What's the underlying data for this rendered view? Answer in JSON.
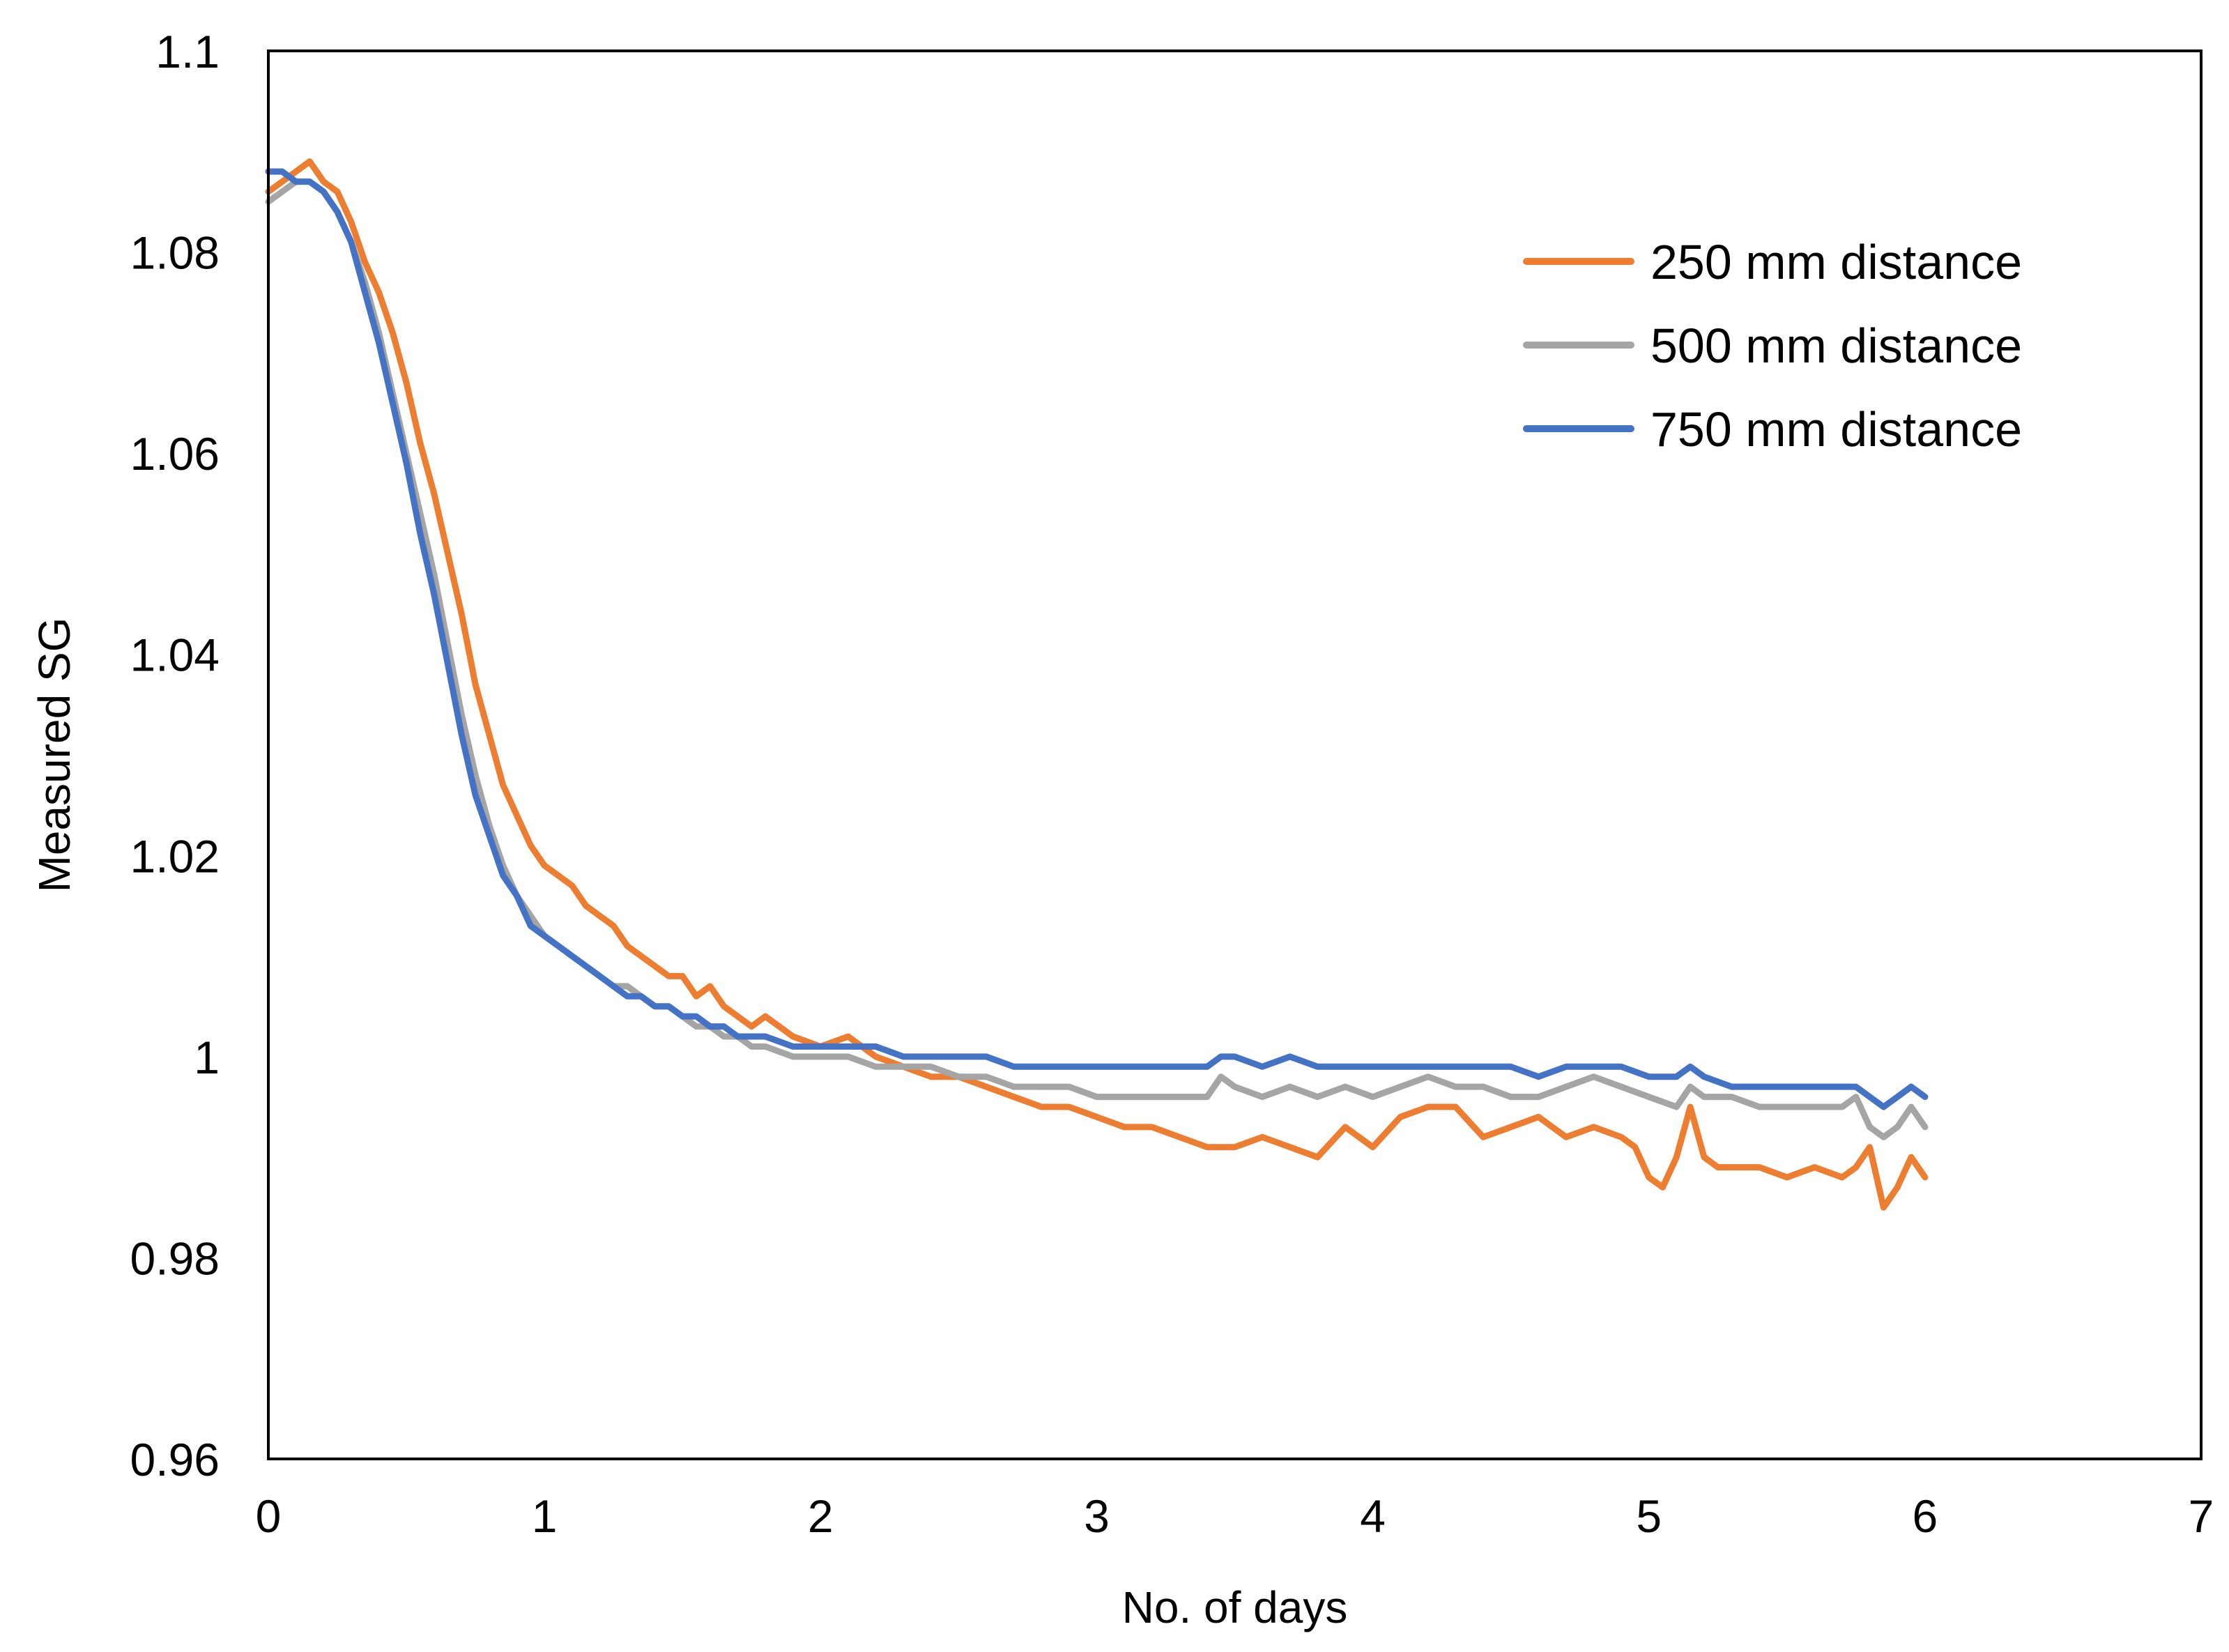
{
  "chart_data": {
    "type": "line",
    "title": "",
    "xlabel": "No. of days",
    "ylabel": "Measured SG",
    "xlim": [
      0,
      7
    ],
    "ylim": [
      0.96,
      1.1
    ],
    "xticks": [
      0,
      1,
      2,
      3,
      4,
      5,
      6,
      7
    ],
    "xtick_labels": [
      "0",
      "1",
      "2",
      "3",
      "4",
      "5",
      "6",
      "7"
    ],
    "yticks": [
      0.96,
      0.98,
      1.0,
      1.02,
      1.04,
      1.06,
      1.08,
      1.1
    ],
    "ytick_labels": [
      "0.96",
      "0.98",
      "1",
      "1.02",
      "1.04",
      "1.06",
      "1.08",
      "1.1"
    ],
    "grid": false,
    "legend_position": "top-right",
    "series": [
      {
        "name": "250 mm distance",
        "label": "250 mm distance",
        "color": "#ED7D31",
        "x": [
          0,
          0.05,
          0.1,
          0.15,
          0.2,
          0.25,
          0.3,
          0.35,
          0.4,
          0.45,
          0.5,
          0.55,
          0.6,
          0.65,
          0.7,
          0.75,
          0.8,
          0.85,
          0.9,
          0.95,
          1.0,
          1.05,
          1.1,
          1.15,
          1.2,
          1.25,
          1.3,
          1.35,
          1.4,
          1.45,
          1.5,
          1.55,
          1.6,
          1.65,
          1.7,
          1.75,
          1.8,
          1.9,
          2.0,
          2.1,
          2.2,
          2.3,
          2.4,
          2.5,
          2.6,
          2.7,
          2.8,
          2.9,
          3.0,
          3.1,
          3.2,
          3.3,
          3.4,
          3.5,
          3.6,
          3.7,
          3.8,
          3.9,
          4.0,
          4.1,
          4.2,
          4.3,
          4.4,
          4.5,
          4.6,
          4.7,
          4.8,
          4.9,
          4.95,
          5.0,
          5.05,
          5.1,
          5.15,
          5.2,
          5.25,
          5.3,
          5.4,
          5.5,
          5.6,
          5.7,
          5.75,
          5.8,
          5.85,
          5.9,
          5.95,
          6.0
        ],
        "y": [
          1.086,
          1.087,
          1.088,
          1.089,
          1.087,
          1.086,
          1.083,
          1.079,
          1.076,
          1.072,
          1.067,
          1.061,
          1.056,
          1.05,
          1.044,
          1.037,
          1.032,
          1.027,
          1.024,
          1.021,
          1.019,
          1.018,
          1.017,
          1.015,
          1.014,
          1.013,
          1.011,
          1.01,
          1.009,
          1.008,
          1.008,
          1.006,
          1.007,
          1.005,
          1.004,
          1.003,
          1.004,
          1.002,
          1.001,
          1.002,
          1.0,
          0.999,
          0.998,
          0.998,
          0.997,
          0.996,
          0.995,
          0.995,
          0.994,
          0.993,
          0.993,
          0.992,
          0.991,
          0.991,
          0.992,
          0.991,
          0.99,
          0.993,
          0.991,
          0.994,
          0.995,
          0.995,
          0.992,
          0.993,
          0.994,
          0.992,
          0.993,
          0.992,
          0.991,
          0.988,
          0.987,
          0.99,
          0.995,
          0.99,
          0.989,
          0.989,
          0.989,
          0.988,
          0.989,
          0.988,
          0.989,
          0.991,
          0.985,
          0.987,
          0.99,
          0.988
        ]
      },
      {
        "name": "500 mm distance",
        "label": "500 mm distance",
        "color": "#A5A5A5",
        "x": [
          0,
          0.05,
          0.1,
          0.15,
          0.2,
          0.25,
          0.3,
          0.35,
          0.4,
          0.45,
          0.5,
          0.55,
          0.6,
          0.65,
          0.7,
          0.75,
          0.8,
          0.85,
          0.9,
          0.95,
          1.0,
          1.05,
          1.1,
          1.15,
          1.2,
          1.25,
          1.3,
          1.35,
          1.4,
          1.45,
          1.5,
          1.55,
          1.6,
          1.65,
          1.7,
          1.75,
          1.8,
          1.9,
          2.0,
          2.1,
          2.2,
          2.3,
          2.4,
          2.5,
          2.6,
          2.7,
          2.8,
          2.9,
          3.0,
          3.1,
          3.2,
          3.3,
          3.4,
          3.45,
          3.5,
          3.6,
          3.7,
          3.8,
          3.9,
          4.0,
          4.1,
          4.2,
          4.3,
          4.4,
          4.5,
          4.6,
          4.7,
          4.8,
          4.9,
          5.0,
          5.1,
          5.15,
          5.2,
          5.3,
          5.4,
          5.5,
          5.6,
          5.7,
          5.75,
          5.8,
          5.85,
          5.9,
          5.95,
          6.0
        ],
        "y": [
          1.085,
          1.086,
          1.087,
          1.087,
          1.086,
          1.084,
          1.081,
          1.077,
          1.072,
          1.066,
          1.06,
          1.054,
          1.048,
          1.041,
          1.034,
          1.028,
          1.023,
          1.019,
          1.016,
          1.014,
          1.012,
          1.011,
          1.01,
          1.009,
          1.008,
          1.007,
          1.007,
          1.006,
          1.005,
          1.005,
          1.004,
          1.003,
          1.003,
          1.002,
          1.002,
          1.001,
          1.001,
          1.0,
          1.0,
          1.0,
          0.999,
          0.999,
          0.999,
          0.998,
          0.998,
          0.997,
          0.997,
          0.997,
          0.996,
          0.996,
          0.996,
          0.996,
          0.996,
          0.998,
          0.997,
          0.996,
          0.997,
          0.996,
          0.997,
          0.996,
          0.997,
          0.998,
          0.997,
          0.997,
          0.996,
          0.996,
          0.997,
          0.998,
          0.997,
          0.996,
          0.995,
          0.997,
          0.996,
          0.996,
          0.995,
          0.995,
          0.995,
          0.995,
          0.996,
          0.993,
          0.992,
          0.993,
          0.995,
          0.993
        ]
      },
      {
        "name": "750 mm distance",
        "label": "750 mm distance",
        "color": "#4472C4",
        "x": [
          0,
          0.05,
          0.1,
          0.15,
          0.2,
          0.25,
          0.3,
          0.35,
          0.4,
          0.45,
          0.5,
          0.55,
          0.6,
          0.65,
          0.7,
          0.75,
          0.8,
          0.85,
          0.9,
          0.95,
          1.0,
          1.05,
          1.1,
          1.15,
          1.2,
          1.25,
          1.3,
          1.35,
          1.4,
          1.45,
          1.5,
          1.55,
          1.6,
          1.65,
          1.7,
          1.75,
          1.8,
          1.9,
          2.0,
          2.1,
          2.2,
          2.3,
          2.4,
          2.5,
          2.6,
          2.7,
          2.8,
          2.9,
          3.0,
          3.1,
          3.2,
          3.3,
          3.4,
          3.45,
          3.5,
          3.6,
          3.7,
          3.8,
          3.9,
          4.0,
          4.1,
          4.2,
          4.3,
          4.4,
          4.5,
          4.6,
          4.7,
          4.8,
          4.9,
          5.0,
          5.1,
          5.15,
          5.2,
          5.3,
          5.4,
          5.5,
          5.6,
          5.7,
          5.75,
          5.8,
          5.85,
          5.9,
          5.95,
          6.0
        ],
        "y": [
          1.088,
          1.088,
          1.087,
          1.087,
          1.086,
          1.084,
          1.081,
          1.076,
          1.071,
          1.065,
          1.059,
          1.052,
          1.046,
          1.039,
          1.032,
          1.026,
          1.022,
          1.018,
          1.016,
          1.013,
          1.012,
          1.011,
          1.01,
          1.009,
          1.008,
          1.007,
          1.006,
          1.006,
          1.005,
          1.005,
          1.004,
          1.004,
          1.003,
          1.003,
          1.002,
          1.002,
          1.002,
          1.001,
          1.001,
          1.001,
          1.001,
          1.0,
          1.0,
          1.0,
          1.0,
          0.999,
          0.999,
          0.999,
          0.999,
          0.999,
          0.999,
          0.999,
          0.999,
          1.0,
          1.0,
          0.999,
          1.0,
          0.999,
          0.999,
          0.999,
          0.999,
          0.999,
          0.999,
          0.999,
          0.999,
          0.998,
          0.999,
          0.999,
          0.999,
          0.998,
          0.998,
          0.999,
          0.998,
          0.997,
          0.997,
          0.997,
          0.997,
          0.997,
          0.997,
          0.996,
          0.995,
          0.996,
          0.997,
          0.996
        ]
      }
    ]
  }
}
